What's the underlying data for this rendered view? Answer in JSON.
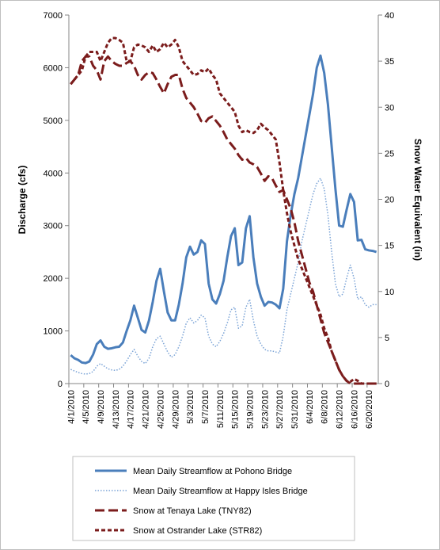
{
  "chart_data": {
    "type": "line",
    "categories": [
      "4/1/2010",
      null,
      null,
      null,
      "4/5/2010",
      null,
      null,
      null,
      "4/9/2010",
      null,
      null,
      null,
      "4/13/2010",
      null,
      null,
      null,
      "4/17/2010",
      null,
      null,
      null,
      "4/21/2010",
      null,
      null,
      null,
      "4/25/2010",
      null,
      null,
      null,
      "4/29/2010",
      null,
      null,
      null,
      "5/3/2010",
      null,
      null,
      null,
      "5/7/2010",
      null,
      null,
      null,
      "5/11/2010",
      null,
      null,
      null,
      "5/15/2010",
      null,
      null,
      null,
      "5/19/2010",
      null,
      null,
      null,
      "5/23/2010",
      null,
      null,
      null,
      "5/27/2010",
      null,
      null,
      null,
      "5/31/2010",
      null,
      null,
      null,
      "6/4/2010",
      null,
      null,
      null,
      "6/8/2010",
      null,
      null,
      null,
      "6/12/2010",
      null,
      null,
      null,
      "6/16/2010",
      null,
      null,
      null,
      "6/20/2010",
      null,
      null
    ],
    "y_label": "Discharge (cfs)",
    "y2_label": "Snow Water Equivalent (in)",
    "ylim": [
      0,
      7000
    ],
    "yticks": [
      0,
      1000,
      2000,
      3000,
      4000,
      5000,
      6000,
      7000
    ],
    "y2lim": [
      0,
      40
    ],
    "y2ticks": [
      0,
      5,
      10,
      15,
      20,
      25,
      30,
      35,
      40
    ],
    "series": [
      {
        "name": "Mean Daily Streamflow  at Pohono Bridge",
        "color": "#4a7ebb",
        "line_style": "solid",
        "values": [
          540,
          480,
          450,
          400,
          390,
          420,
          550,
          750,
          820,
          700,
          660,
          670,
          690,
          700,
          780,
          1000,
          1200,
          1480,
          1250,
          1020,
          970,
          1200,
          1550,
          1950,
          2180,
          1750,
          1350,
          1200,
          1200,
          1500,
          1900,
          2400,
          2600,
          2450,
          2500,
          2720,
          2650,
          1900,
          1600,
          1520,
          1700,
          1950,
          2400,
          2800,
          2950,
          2250,
          2300,
          2950,
          3180,
          2400,
          1900,
          1650,
          1480,
          1550,
          1540,
          1500,
          1430,
          1800,
          2700,
          3200,
          3600,
          3900,
          4300,
          4700,
          5100,
          5500,
          6000,
          6230,
          5900,
          5300,
          4500,
          3700,
          3000,
          2980,
          3300,
          3600,
          3450,
          2720,
          2730,
          2550,
          2530,
          2520,
          2500
        ]
      },
      {
        "name": "Mean Daily Streamflow  at Happy Isles Bridge",
        "color": "#7aa3d6",
        "line_style": "dotted",
        "values": [
          270,
          240,
          210,
          190,
          180,
          190,
          230,
          330,
          380,
          330,
          280,
          260,
          250,
          270,
          330,
          430,
          550,
          650,
          520,
          420,
          380,
          480,
          700,
          850,
          900,
          750,
          600,
          500,
          550,
          700,
          900,
          1150,
          1250,
          1150,
          1200,
          1300,
          1250,
          900,
          750,
          700,
          800,
          950,
          1150,
          1400,
          1450,
          1050,
          1100,
          1450,
          1600,
          1200,
          900,
          750,
          650,
          620,
          620,
          600,
          580,
          900,
          1400,
          1700,
          2000,
          2300,
          2700,
          3000,
          3300,
          3600,
          3800,
          3900,
          3700,
          3200,
          2500,
          1900,
          1650,
          1700,
          2000,
          2250,
          2000,
          1600,
          1650,
          1500,
          1450,
          1500,
          1500
        ]
      },
      {
        "name": "Snow at Tenaya Lake (TNY82)",
        "color": "#7b1c1c",
        "line_style": "dashed",
        "axis": "y2",
        "values": [
          32.5,
          33,
          33.5,
          35,
          35.5,
          35.5,
          34.5,
          34,
          33,
          35,
          35.5,
          35,
          34.7,
          34.5,
          34.5,
          34.8,
          35,
          34.5,
          33.5,
          33,
          33.5,
          33.8,
          33.7,
          33,
          32.2,
          31.5,
          32.5,
          33.3,
          33.5,
          33.5,
          32,
          31,
          30.5,
          30,
          29.3,
          28.5,
          28.3,
          28.8,
          29,
          28.5,
          28,
          27.3,
          26.5,
          26,
          25.5,
          24.8,
          24.3,
          24.5,
          24,
          23.8,
          23.5,
          22.8,
          22,
          22.5,
          22.3,
          21.5,
          20.8,
          21,
          20,
          19,
          17.5,
          15.5,
          14,
          12.5,
          11,
          10,
          8.5,
          7,
          5.5,
          4.5,
          3.5,
          2.5,
          1.5,
          0.8,
          0.3,
          0,
          0,
          0,
          0,
          0,
          0,
          0,
          0
        ]
      },
      {
        "name": "Snow at Ostrander Lake (STR82)",
        "color": "#7b1c1c",
        "line_style": "short-dashed",
        "axis": "y2",
        "values": [
          32.5,
          33,
          33.5,
          34,
          35.5,
          36,
          36,
          36,
          35,
          36,
          37,
          37.5,
          37.5,
          37.3,
          37,
          35,
          35,
          36.5,
          36.8,
          36.7,
          36.5,
          36,
          36.7,
          36,
          36.3,
          37,
          36.5,
          36.8,
          37.3,
          36.5,
          35,
          34.5,
          34,
          33.5,
          33.6,
          34,
          33.8,
          34.2,
          33.5,
          33,
          31.5,
          31,
          30.5,
          30,
          29.5,
          28,
          27.3,
          27.5,
          27.3,
          27.2,
          27.5,
          28.2,
          27.8,
          27.5,
          27,
          26.5,
          24,
          21,
          18.5,
          16.5,
          15,
          13.5,
          12.5,
          11.5,
          10.5,
          9.5,
          8.5,
          7.5,
          6,
          5,
          3.5,
          2.5,
          1.5,
          0.8,
          0.3,
          0.2,
          0.5,
          0.3,
          0,
          0,
          0,
          0,
          0
        ]
      }
    ]
  }
}
